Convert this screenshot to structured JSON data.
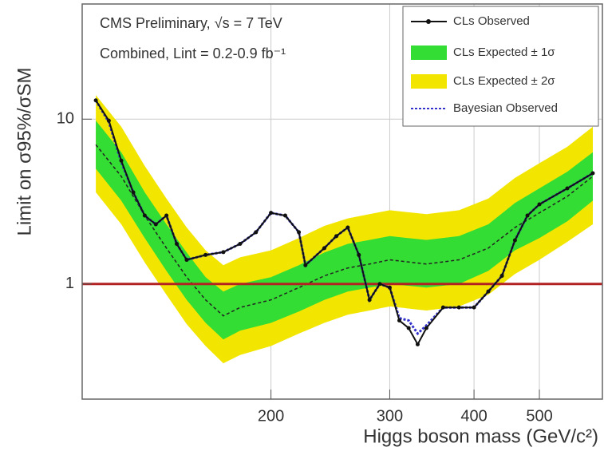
{
  "chart_data": {
    "type": "limit",
    "annotations": [
      "CMS Preliminary, √s = 7 TeV",
      "Combined, Lint = 0.2-0.9 fb⁻¹"
    ],
    "xlabel": "Higgs boson mass (GeV/c²)",
    "ylabel": "Limit on σ95%/σSM",
    "xlim": [
      105,
      620
    ],
    "xlog": true,
    "xticks": [
      200,
      300,
      400,
      500
    ],
    "ylim": [
      0.2,
      50
    ],
    "ylog": true,
    "yticks": [
      1,
      10
    ],
    "grid": true,
    "legend": "upper right",
    "reference_line": {
      "value": 1,
      "color": "#b22222"
    },
    "series": [
      {
        "name": "CLs Observed",
        "kind": "line",
        "color": "#111111",
        "marker": true,
        "x": [
          110,
          115,
          120,
          125,
          130,
          135,
          140,
          145,
          150,
          160,
          170,
          180,
          190,
          200,
          210,
          220,
          225,
          240,
          250,
          260,
          270,
          280,
          290,
          300,
          310,
          320,
          330,
          340,
          360,
          380,
          400,
          420,
          440,
          460,
          480,
          500,
          550,
          600
        ],
        "values": [
          13,
          9.8,
          5.6,
          3.6,
          2.6,
          2.3,
          2.6,
          1.75,
          1.4,
          1.5,
          1.56,
          1.75,
          2.06,
          2.7,
          2.6,
          2.06,
          1.3,
          1.65,
          1.95,
          2.2,
          1.5,
          0.8,
          1.0,
          0.95,
          0.6,
          0.54,
          0.43,
          0.54,
          0.72,
          0.72,
          0.72,
          0.9,
          1.12,
          1.84,
          2.6,
          3.04,
          3.8,
          4.7
        ]
      },
      {
        "name": "CLs Expected ± 1σ",
        "kind": "band",
        "color": "#33dd33",
        "x": [
          110,
          120,
          130,
          140,
          150,
          160,
          170,
          180,
          200,
          220,
          240,
          260,
          280,
          300,
          340,
          380,
          420,
          460,
          500,
          550,
          600
        ],
        "low": [
          5.0,
          3.2,
          1.9,
          1.2,
          0.8,
          0.58,
          0.46,
          0.52,
          0.58,
          0.68,
          0.8,
          0.9,
          0.95,
          1.0,
          0.95,
          1.0,
          1.2,
          1.6,
          1.9,
          2.4,
          3.2
        ],
        "high": [
          9.8,
          6.3,
          3.6,
          2.3,
          1.55,
          1.1,
          0.9,
          1.0,
          1.1,
          1.3,
          1.55,
          1.75,
          1.85,
          1.95,
          1.85,
          1.95,
          2.3,
          3.1,
          3.8,
          4.8,
          6.3
        ]
      },
      {
        "name": "CLs Expected ± 2σ",
        "kind": "band",
        "color": "#f2e600",
        "x": [
          110,
          120,
          130,
          140,
          150,
          160,
          170,
          180,
          200,
          220,
          240,
          260,
          280,
          300,
          340,
          380,
          420,
          460,
          500,
          550,
          600
        ],
        "low": [
          3.6,
          2.3,
          1.35,
          0.86,
          0.57,
          0.42,
          0.33,
          0.37,
          0.42,
          0.5,
          0.58,
          0.65,
          0.69,
          0.73,
          0.69,
          0.73,
          0.86,
          1.15,
          1.4,
          1.8,
          2.3
        ],
        "high": [
          14,
          9,
          5.2,
          3.3,
          2.2,
          1.6,
          1.3,
          1.45,
          1.6,
          1.9,
          2.25,
          2.5,
          2.65,
          2.8,
          2.65,
          2.8,
          3.3,
          4.4,
          5.4,
          6.8,
          9
        ]
      },
      {
        "name": "Bayesian Observed",
        "kind": "line",
        "color": "#3333cc",
        "dash": true,
        "x": [
          110,
          115,
          120,
          125,
          130,
          135,
          140,
          145,
          150,
          160,
          170,
          180,
          190,
          200,
          210,
          220,
          225,
          240,
          250,
          260,
          270,
          280,
          290,
          300,
          310,
          320,
          330,
          340,
          360,
          380,
          400,
          420,
          440,
          460,
          480,
          500,
          550,
          600
        ],
        "values": [
          13,
          9.6,
          5.5,
          3.6,
          2.6,
          2.3,
          2.6,
          1.75,
          1.4,
          1.5,
          1.56,
          1.75,
          2.06,
          2.7,
          2.6,
          2.06,
          1.3,
          1.65,
          1.95,
          2.2,
          1.5,
          0.8,
          1.0,
          0.95,
          0.62,
          0.6,
          0.5,
          0.56,
          0.72,
          0.72,
          0.72,
          0.9,
          1.12,
          1.84,
          2.6,
          3.04,
          3.8,
          4.7
        ]
      }
    ],
    "expected_median": {
      "color": "#222222",
      "x": [
        110,
        120,
        130,
        140,
        150,
        160,
        170,
        180,
        200,
        220,
        240,
        260,
        280,
        300,
        340,
        380,
        420,
        460,
        500,
        550,
        600
      ],
      "values": [
        7,
        4.5,
        2.6,
        1.65,
        1.1,
        0.8,
        0.64,
        0.72,
        0.8,
        0.95,
        1.12,
        1.25,
        1.32,
        1.4,
        1.32,
        1.4,
        1.65,
        2.2,
        2.7,
        3.4,
        4.5
      ]
    }
  }
}
